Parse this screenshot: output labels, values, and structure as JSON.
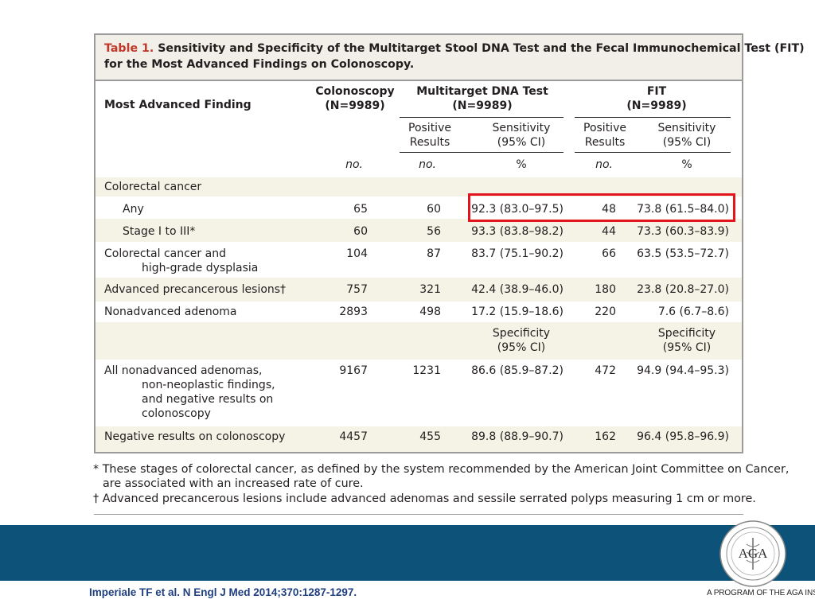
{
  "table": {
    "title_label": "Table 1.",
    "title_line1": "Sensitivity and Specificity of the Multitarget Stool DNA Test and the Fecal Immunochemical Test (FIT)",
    "title_line2": "for the Most Advanced Findings on Colonoscopy.",
    "headers": {
      "finding": "Most Advanced Finding",
      "colonoscopy_name": "Colonoscopy",
      "colonoscopy_n": "(N=9989)",
      "dna_name": "Multitarget DNA Test",
      "dna_n": "(N=9989)",
      "fit_name": "FIT",
      "fit_n": "(N=9989)",
      "positive_1": "Positive",
      "positive_2": "Results",
      "sens_1": "Sensitivity",
      "sens_2": "(95% CI)",
      "unit_no": "no.",
      "unit_pct": "%"
    },
    "rows": {
      "crc_heading": "Colorectal cancer",
      "any": {
        "label": "Any",
        "colo": "65",
        "dna_pos": "60",
        "dna_sens": "92.3 (83.0–97.5)",
        "fit_pos": "48",
        "fit_sens": "73.8 (61.5–84.0)"
      },
      "stage": {
        "label": "Stage I to III*",
        "colo": "60",
        "dna_pos": "56",
        "dna_sens": "93.3 (83.8–98.2)",
        "fit_pos": "44",
        "fit_sens": "73.3 (60.3–83.9)"
      },
      "crc_hgd": {
        "label1": "Colorectal cancer and",
        "label2": "high-grade dysplasia",
        "colo": "104",
        "dna_pos": "87",
        "dna_sens": "83.7 (75.1–90.2)",
        "fit_pos": "66",
        "fit_sens": "63.5 (53.5–72.7)"
      },
      "apl": {
        "label": "Advanced precancerous lesions†",
        "colo": "757",
        "dna_pos": "321",
        "dna_sens": "42.4 (38.9–46.0)",
        "fit_pos": "180",
        "fit_sens": "23.8 (20.8–27.0)"
      },
      "nonadv": {
        "label": "Nonadvanced adenoma",
        "colo": "2893",
        "dna_pos": "498",
        "dna_sens": "17.2 (15.9–18.6)",
        "fit_pos": "220",
        "fit_sens": "7.6 (6.7–8.6)"
      },
      "spec_1": "Specificity",
      "spec_2": "(95% CI)",
      "all_nonadv": {
        "label1": "All nonadvanced adenomas,",
        "label2": "non-neoplastic findings,",
        "label3": "and negative results on",
        "label4": "colonoscopy",
        "colo": "9167",
        "dna_pos": "1231",
        "dna_spec": "86.6 (85.9–87.2)",
        "fit_pos": "472",
        "fit_spec": "94.9 (94.4–95.3)"
      },
      "negative": {
        "label": "Negative results on colonoscopy",
        "colo": "4457",
        "dna_pos": "455",
        "dna_spec": "89.8 (88.9–90.7)",
        "fit_pos": "162",
        "fit_spec": "96.4 (95.8–96.9)"
      }
    }
  },
  "footnotes": {
    "star_1": "* These stages of colorectal cancer, as defined by the system recommended by the American Joint Committee on Cancer,",
    "star_2": "are associated with an increased rate of cure.",
    "dagger": "† Advanced precancerous lesions include advanced adenomas and sessile serrated polyps measuring 1 cm or more."
  },
  "citation": "Imperiale TF et al. N Engl J Med 2014;370:1287-1297.",
  "logo": {
    "initials": "AGA"
  },
  "program_text": "A PROGRAM OF THE AGA INSTITUTE",
  "colors": {
    "band": "#0d5279",
    "highlight": "#e3141b",
    "title_label": "#c0392b",
    "stripe": "#f5f3e6"
  }
}
